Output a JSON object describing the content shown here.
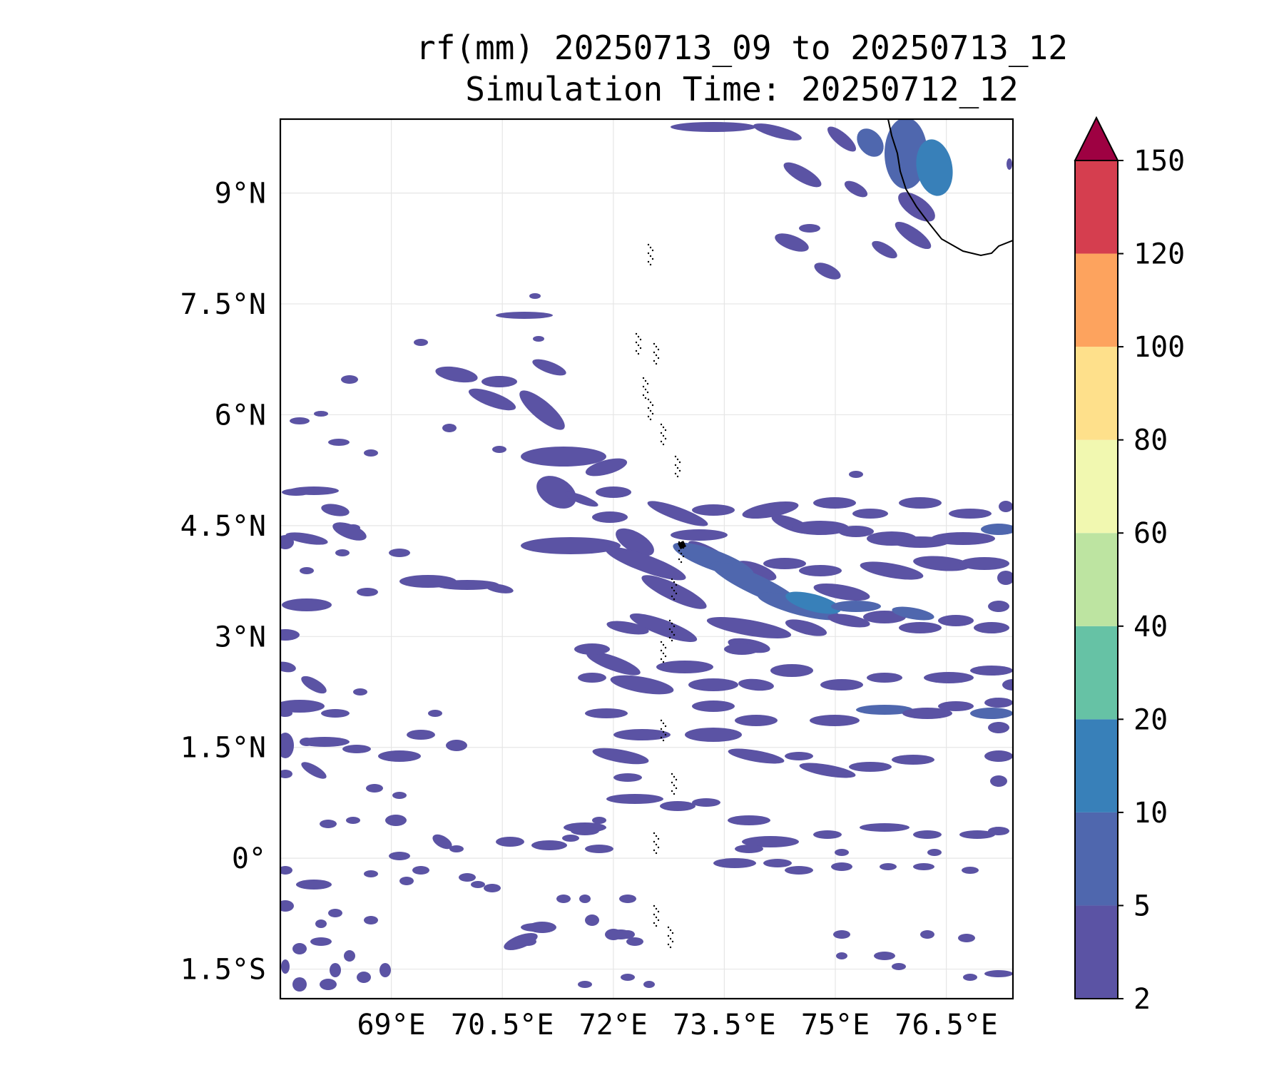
{
  "title": {
    "line1": "rf(mm) 20250713_09 to 20250713_12",
    "line2": "Simulation Time: 20250712_12"
  },
  "map": {
    "lon_range": [
      67.5,
      77.4
    ],
    "lat_range": [
      -1.9,
      10.0
    ],
    "lon_ticks": [
      "69°E",
      "70.5°E",
      "72°E",
      "73.5°E",
      "75°E",
      "76.5°E"
    ],
    "lon_tick_values": [
      69,
      70.5,
      72,
      73.5,
      75,
      76.5
    ],
    "lat_ticks": [
      "9°N",
      "7.5°N",
      "6°N",
      "4.5°N",
      "3°N",
      "1.5°N",
      "0°",
      "1.5°S"
    ],
    "lat_tick_values": [
      9,
      7.5,
      6,
      4.5,
      3,
      1.5,
      0,
      -1.5
    ],
    "gridlines": true,
    "coastline_color": "#000000"
  },
  "colorbar": {
    "levels": [
      "2",
      "5",
      "10",
      "20",
      "40",
      "60",
      "80",
      "100",
      "120",
      "150"
    ],
    "colors": [
      "#5b53a4",
      "#4f67ae",
      "#3880b9",
      "#66c2a5",
      "#bde4a1",
      "#f1f8b0",
      "#fee08b",
      "#fda35e",
      "#d53e4f",
      "#9e0142"
    ],
    "extend": "max",
    "placement": "right"
  },
  "rain_field": {
    "color_light": "#5b53a4",
    "color_mid": "#4f67ae",
    "color_heavy": "#3880b9"
  }
}
